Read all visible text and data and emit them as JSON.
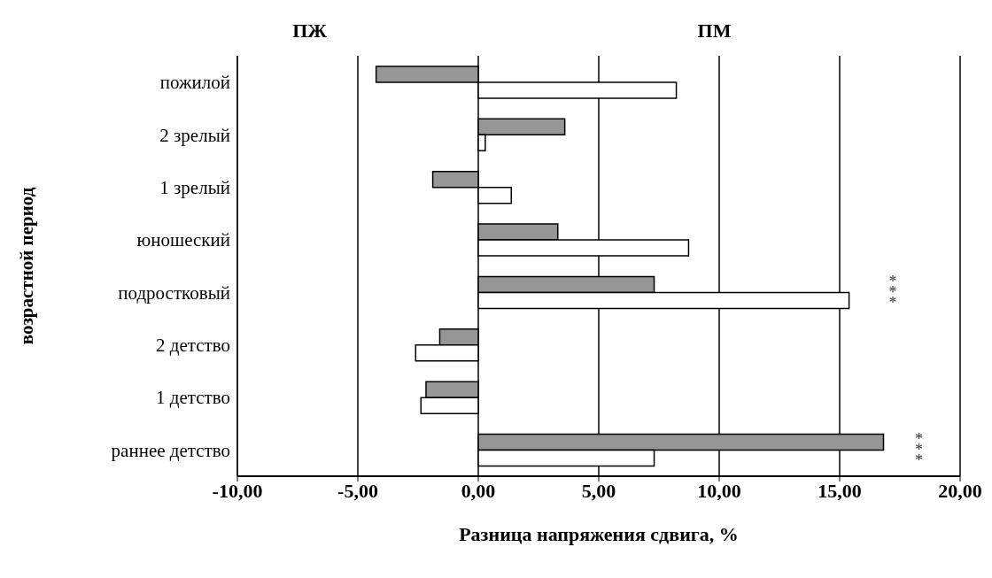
{
  "chart_data": {
    "type": "bar",
    "orientation": "horizontal",
    "xlabel": "Разница напряжения сдвига, %",
    "ylabel": "возрастной период",
    "categories": [
      "пожилой",
      "2 зрелый",
      "1 зрелый",
      "юношеский",
      "подростковый",
      "2 детство",
      "1 детство",
      "раннее детство"
    ],
    "series": [
      {
        "color": "#969696",
        "values": [
          -4.24,
          3.59,
          -1.89,
          3.3,
          7.3,
          -1.6,
          -2.17,
          16.82
        ]
      },
      {
        "color": "#ffffff",
        "values": [
          8.22,
          0.29,
          1.37,
          8.73,
          15.39,
          -2.6,
          -2.38,
          7.3
        ]
      }
    ],
    "xlim": [
      -10,
      20
    ],
    "xticks": [
      {
        "value": -10,
        "label": "-10,00"
      },
      {
        "value": -5,
        "label": "-5,00"
      },
      {
        "value": 0,
        "label": "0,00"
      },
      {
        "value": 5,
        "label": "5,00"
      },
      {
        "value": 10,
        "label": "10,00"
      },
      {
        "value": 15,
        "label": "15,00"
      },
      {
        "value": 20,
        "label": "20,00"
      }
    ],
    "grid": "x",
    "legend": false,
    "annotations": [
      "ПЖ",
      "ПМ",
      "***",
      "***"
    ]
  }
}
